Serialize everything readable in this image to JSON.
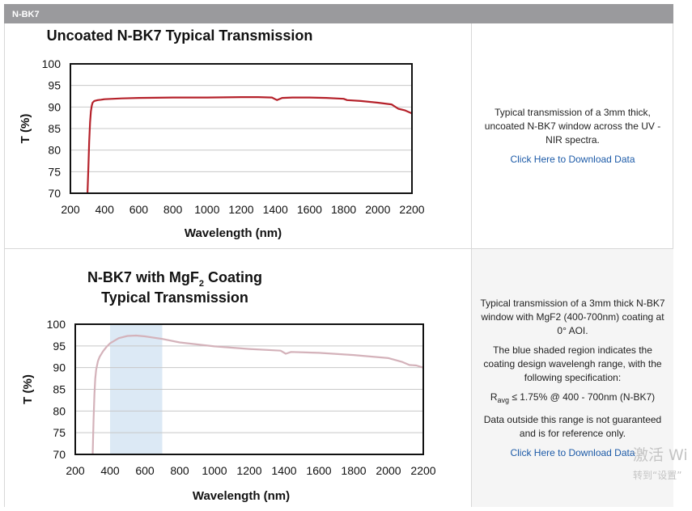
{
  "header": {
    "title": "N-BK7"
  },
  "charts": [
    {
      "title_lines": [
        "Uncoated N-BK7 Typical Transmission"
      ],
      "description": [
        "Typical transmission of a 3mm thick, uncoated N-BK7 window across the UV - NIR spectra."
      ],
      "download_label": "Click Here to Download Data"
    },
    {
      "title_lines": [
        "N-BK7 with MgF",
        "2",
        " Coating",
        "Typical Transmission"
      ],
      "description": [
        "Typical transmission of a 3mm thick N-BK7 window with MgF2 (400-700nm) coating at 0° AOI.",
        "The blue shaded region indicates the coating design wavelengh range, with the following specification:"
      ],
      "spec": {
        "r": "R",
        "sub": "avg",
        "rest": " ≤ 1.75% @ 400 - 700nm (N-BK7)"
      },
      "note": "Data outside this range is not guaranteed and is for reference only.",
      "download_label": "Click Here to Download Data"
    }
  ],
  "chart_data": [
    {
      "type": "line",
      "title": "Uncoated N-BK7 Typical Transmission",
      "xlabel": "Wavelength (nm)",
      "ylabel": "T (%)",
      "xlim": [
        200,
        2200
      ],
      "ylim": [
        70,
        100
      ],
      "xticks": [
        200,
        400,
        600,
        800,
        1000,
        1200,
        1400,
        1600,
        1800,
        2000,
        2200
      ],
      "yticks": [
        70,
        75,
        80,
        85,
        90,
        95,
        100
      ],
      "grid": "horizontal",
      "series": [
        {
          "color": "#b5212a",
          "x": [
            300,
            305,
            310,
            315,
            320,
            325,
            330,
            340,
            350,
            360,
            380,
            400,
            500,
            600,
            800,
            1000,
            1200,
            1300,
            1380,
            1410,
            1440,
            1500,
            1600,
            1700,
            1800,
            1820,
            1900,
            2000,
            2080,
            2120,
            2160,
            2200
          ],
          "y": [
            70,
            76,
            82,
            86.5,
            89,
            90.3,
            91,
            91.4,
            91.5,
            91.6,
            91.7,
            91.8,
            92,
            92.1,
            92.2,
            92.2,
            92.3,
            92.3,
            92.2,
            91.6,
            92.1,
            92.2,
            92.2,
            92.1,
            91.9,
            91.6,
            91.4,
            91,
            90.6,
            89.6,
            89.2,
            88.5
          ]
        }
      ]
    },
    {
      "type": "line",
      "title": "N-BK7 with MgF2 Coating Typical Transmission",
      "xlabel": "Wavelength (nm)",
      "ylabel": "T (%)",
      "xlim": [
        200,
        2200
      ],
      "ylim": [
        70,
        100
      ],
      "xticks": [
        200,
        400,
        600,
        800,
        1000,
        1200,
        1400,
        1600,
        1800,
        2000,
        2200
      ],
      "yticks": [
        70,
        75,
        80,
        85,
        90,
        95,
        100
      ],
      "grid": "horizontal",
      "shaded_region": {
        "x": [
          400,
          700
        ],
        "color": "#dce9f5"
      },
      "series": [
        {
          "color": "#d4b2ba",
          "x": [
            300,
            305,
            310,
            315,
            320,
            330,
            340,
            360,
            380,
            400,
            450,
            500,
            550,
            600,
            700,
            800,
            1000,
            1200,
            1380,
            1410,
            1440,
            1600,
            1800,
            2000,
            2080,
            2120,
            2160,
            2200
          ],
          "y": [
            70,
            78,
            84,
            87.5,
            89.5,
            91.5,
            92.5,
            93.8,
            94.8,
            95.6,
            96.8,
            97.3,
            97.4,
            97.2,
            96.6,
            95.8,
            94.9,
            94.3,
            93.9,
            93.2,
            93.6,
            93.4,
            92.9,
            92.2,
            91.3,
            90.6,
            90.5,
            90
          ]
        }
      ]
    }
  ],
  "watermark": {
    "line1": "激活 Wi",
    "line2": "转到“设置”"
  }
}
